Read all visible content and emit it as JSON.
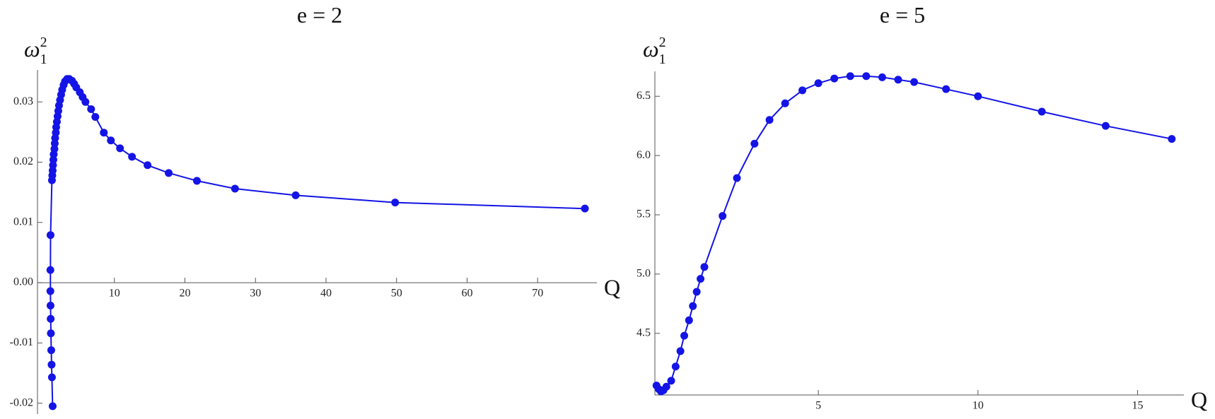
{
  "chart_data": [
    {
      "type": "scatter-line",
      "title": "e = 2",
      "xlabel": "Q",
      "ylabel": {
        "base": "ω",
        "sub": "1",
        "sup": "2"
      },
      "color": "#1414e6",
      "xlim": [
        -0.9,
        78.4
      ],
      "ylim": [
        -0.0218,
        0.0353
      ],
      "xticks": [
        10,
        20,
        30,
        40,
        50,
        60,
        70
      ],
      "yticks": [
        -0.02,
        -0.01,
        {
          "value": 0,
          "label": "0.00"
        },
        0.01,
        0.02,
        0.03
      ],
      "series": [
        {
          "name": null,
          "x": [
            1.25,
            1.15,
            1.1,
            1.05,
            1.0,
            0.97,
            0.95,
            0.93,
            0.93,
            0.95,
            1.15,
            1.2,
            1.25,
            1.3,
            1.35,
            1.4,
            1.5,
            1.55,
            1.6,
            1.7,
            1.75,
            1.85,
            1.95,
            2.05,
            2.15,
            2.3,
            2.45,
            2.6,
            2.8,
            3.0,
            3.3,
            3.6,
            4.0,
            4.3,
            4.6,
            5.1,
            5.5,
            5.9,
            6.7,
            7.3,
            8.5,
            9.5,
            10.8,
            12.5,
            14.7,
            17.7,
            21.7,
            27.1,
            35.7,
            49.8,
            76.7
          ],
          "values": [
            -0.0205,
            -0.0157,
            -0.0136,
            -0.0112,
            -0.0084,
            -0.006,
            -0.0038,
            -0.0014,
            0.0021,
            0.0079,
            0.017,
            0.0178,
            0.0186,
            0.0195,
            0.0204,
            0.0213,
            0.0222,
            0.0231,
            0.024,
            0.0249,
            0.0258,
            0.0267,
            0.0276,
            0.0285,
            0.0294,
            0.0303,
            0.0312,
            0.032,
            0.0328,
            0.0334,
            0.0338,
            0.0338,
            0.0335,
            0.033,
            0.0324,
            0.0316,
            0.0308,
            0.03,
            0.0288,
            0.0275,
            0.0249,
            0.0236,
            0.0223,
            0.0209,
            0.0195,
            0.0182,
            0.0169,
            0.0156,
            0.0145,
            0.0133,
            0.0123
          ]
        }
      ]
    },
    {
      "type": "scatter-line",
      "title": "e = 5",
      "xlabel": "Q",
      "ylabel": {
        "base": "ω",
        "sub": "1",
        "sup": "2"
      },
      "color": "#1414e6",
      "xlim": [
        -0.12,
        16.45
      ],
      "ylim": [
        3.98,
        6.71
      ],
      "xticks": [
        5,
        10,
        15
      ],
      "yticks": [
        4.5,
        {
          "value": 5,
          "label": "5.0"
        },
        5.5,
        {
          "value": 6,
          "label": "6.0"
        },
        6.5
      ],
      "series": [
        {
          "name": null,
          "x": [
            -0.07,
            0.0,
            0.07,
            0.15,
            0.24,
            0.39,
            0.53,
            0.68,
            0.8,
            0.95,
            1.07,
            1.19,
            1.31,
            1.43,
            2.0,
            2.45,
            3.0,
            3.47,
            3.96,
            4.5,
            5.0,
            5.5,
            6.0,
            6.5,
            7.0,
            7.5,
            8.0,
            9.0,
            10.0,
            12.0,
            14.0,
            16.07
          ],
          "values": [
            4.06,
            4.03,
            4.01,
            4.02,
            4.05,
            4.1,
            4.22,
            4.35,
            4.48,
            4.61,
            4.73,
            4.85,
            4.96,
            5.06,
            5.49,
            5.81,
            6.1,
            6.3,
            6.44,
            6.55,
            6.61,
            6.65,
            6.67,
            6.67,
            6.66,
            6.64,
            6.62,
            6.56,
            6.5,
            6.37,
            6.25,
            6.14
          ]
        }
      ]
    }
  ]
}
